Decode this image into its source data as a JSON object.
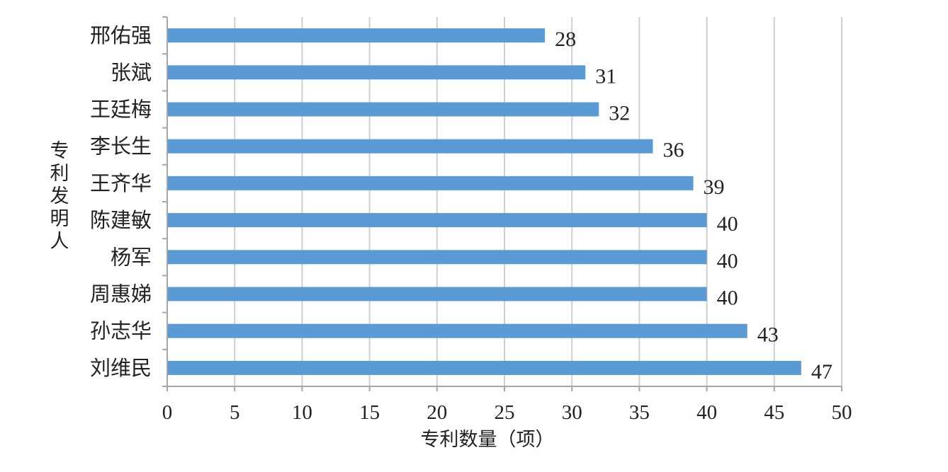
{
  "chart_data": {
    "type": "bar",
    "orientation": "horizontal",
    "categories": [
      "刘维民",
      "孙志华",
      "周惠娣",
      "杨军",
      "陈建敏",
      "王齐华",
      "李长生",
      "王廷梅",
      "张斌",
      "邢佑强"
    ],
    "values": [
      47,
      43,
      40,
      40,
      40,
      39,
      36,
      32,
      31,
      28
    ],
    "xlabel": "专利数量（项）",
    "ylabel": "专利发明人",
    "xlim": [
      0,
      50
    ],
    "xticks": [
      0,
      5,
      10,
      15,
      20,
      25,
      30,
      35,
      40,
      45,
      50
    ],
    "grid": "vertical",
    "bar_color": "#5b9bd5",
    "data_labels": true
  }
}
